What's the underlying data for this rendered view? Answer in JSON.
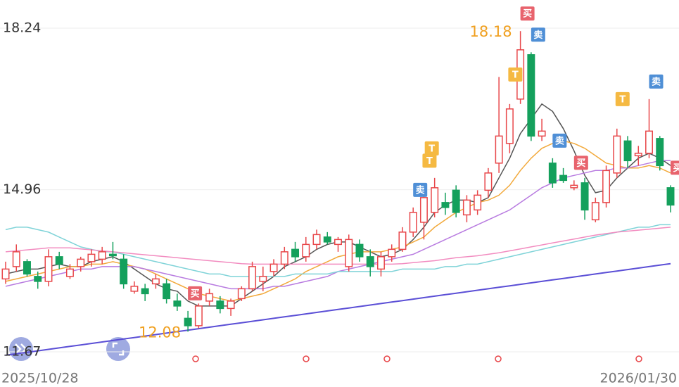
{
  "chart_data": {
    "type": "candlestick",
    "categories": [
      "2025/10/28",
      null,
      null,
      null,
      null,
      null,
      null,
      null,
      null,
      null,
      null,
      null,
      null,
      null,
      null,
      null,
      null,
      null,
      null,
      null,
      null,
      null,
      null,
      null,
      null,
      null,
      null,
      null,
      null,
      null,
      null,
      null,
      null,
      null,
      null,
      null,
      null,
      null,
      null,
      null,
      null,
      null,
      null,
      null,
      null,
      null,
      null,
      null,
      null,
      null,
      null,
      null,
      null,
      null,
      null,
      null,
      null,
      null,
      null,
      null,
      null,
      null,
      "2026/01/30"
    ],
    "open": [
      13.15,
      13.4,
      13.5,
      13.2,
      13.1,
      13.6,
      13.2,
      13.4,
      13.5,
      13.55,
      13.65,
      13.55,
      12.9,
      12.95,
      13.05,
      13.05,
      12.7,
      12.35,
      12.2,
      12.7,
      12.7,
      12.55,
      12.75,
      12.95,
      13.1,
      13.3,
      13.45,
      13.75,
      13.6,
      13.85,
      14.0,
      13.85,
      13.4,
      13.85,
      13.6,
      13.35,
      13.6,
      13.75,
      14.1,
      14.3,
      14.5,
      14.7,
      14.95,
      14.45,
      14.55,
      14.95,
      15.5,
      15.9,
      16.8,
      17.7,
      16.05,
      15.5,
      15.25,
      15.0,
      15.1,
      14.35,
      14.7,
      15.3,
      15.95,
      15.65,
      15.7,
      16.0,
      15.0
    ],
    "high": [
      13.5,
      13.85,
      13.55,
      13.3,
      13.75,
      13.7,
      13.45,
      13.6,
      13.75,
      13.8,
      13.9,
      13.65,
      13.1,
      13.05,
      13.25,
      13.15,
      12.85,
      12.5,
      12.65,
      12.95,
      12.8,
      12.75,
      13.0,
      13.5,
      13.4,
      13.55,
      13.8,
      13.9,
      14.0,
      14.15,
      14.1,
      14.0,
      14.05,
      13.95,
      13.75,
      13.7,
      13.85,
      14.2,
      14.6,
      14.95,
      15.2,
      14.9,
      15.05,
      14.85,
      14.95,
      15.4,
      17.25,
      16.7,
      18.18,
      17.75,
      16.4,
      15.6,
      15.4,
      15.15,
      15.2,
      14.8,
      15.45,
      16.2,
      16.05,
      15.85,
      16.8,
      16.05,
      15.05
    ],
    "low": [
      13.05,
      13.3,
      13.2,
      12.95,
      13.0,
      13.35,
      13.15,
      13.3,
      13.4,
      13.45,
      13.55,
      12.95,
      12.85,
      12.7,
      12.95,
      12.65,
      12.5,
      12.08,
      12.15,
      12.6,
      12.45,
      12.4,
      12.7,
      12.9,
      12.9,
      13.2,
      13.35,
      13.5,
      13.5,
      13.75,
      13.85,
      13.7,
      13.3,
      13.5,
      13.2,
      13.2,
      13.5,
      13.7,
      14.0,
      13.95,
      14.4,
      14.45,
      14.4,
      14.3,
      14.45,
      14.8,
      15.3,
      15.7,
      16.7,
      15.95,
      15.95,
      15.0,
      15.1,
      14.95,
      14.35,
      14.3,
      14.6,
      15.2,
      15.4,
      15.45,
      15.6,
      15.35,
      14.5
    ],
    "close": [
      13.35,
      13.7,
      13.25,
      13.1,
      13.6,
      13.45,
      13.35,
      13.55,
      13.65,
      13.7,
      13.62,
      13.05,
      13.0,
      12.85,
      13.15,
      12.75,
      12.6,
      12.2,
      12.6,
      12.85,
      12.55,
      12.7,
      12.95,
      13.4,
      13.2,
      13.45,
      13.7,
      13.6,
      13.85,
      14.05,
      13.9,
      13.95,
      13.95,
      13.6,
      13.4,
      13.6,
      13.75,
      14.1,
      14.5,
      14.8,
      15.0,
      14.6,
      14.5,
      14.75,
      14.85,
      15.3,
      16.05,
      16.6,
      17.8,
      16.05,
      16.15,
      15.1,
      15.15,
      15.05,
      14.55,
      14.7,
      15.35,
      16.05,
      15.55,
      15.7,
      16.15,
      15.45,
      14.65
    ],
    "up_color": "#e8474a",
    "down_color": "#14a05c",
    "series": [
      {
        "color": "#555555",
        "values": [
          13.25,
          13.3,
          13.35,
          13.35,
          13.4,
          13.45,
          13.4,
          13.4,
          13.5,
          13.55,
          13.6,
          13.5,
          13.35,
          13.2,
          13.05,
          12.95,
          12.9,
          12.7,
          12.6,
          12.6,
          12.6,
          12.6,
          12.75,
          12.9,
          13.05,
          13.2,
          13.4,
          13.5,
          13.6,
          13.75,
          13.85,
          13.9,
          13.9,
          13.8,
          13.7,
          13.6,
          13.65,
          13.75,
          13.95,
          14.2,
          14.5,
          14.65,
          14.75,
          14.75,
          14.7,
          14.8,
          15.2,
          15.6,
          16.1,
          16.4,
          16.7,
          16.55,
          16.2,
          15.75,
          15.25,
          14.9,
          14.95,
          15.2,
          15.4,
          15.6,
          15.7,
          15.6,
          15.45
        ]
      },
      {
        "color": "#f2a93b",
        "values": [
          13.1,
          13.15,
          13.2,
          13.25,
          13.3,
          13.35,
          13.4,
          13.4,
          13.45,
          13.45,
          13.5,
          13.45,
          13.4,
          13.35,
          13.25,
          13.15,
          13.05,
          12.95,
          12.85,
          12.8,
          12.75,
          12.7,
          12.75,
          12.8,
          12.85,
          12.95,
          13.05,
          13.15,
          13.3,
          13.4,
          13.5,
          13.6,
          13.65,
          13.7,
          13.7,
          13.7,
          13.75,
          13.8,
          13.9,
          14.0,
          14.2,
          14.35,
          14.5,
          14.6,
          14.7,
          14.75,
          14.85,
          15.05,
          15.35,
          15.6,
          15.8,
          15.9,
          15.95,
          15.9,
          15.8,
          15.65,
          15.5,
          15.45,
          15.4,
          15.4,
          15.45,
          15.4,
          15.3
        ]
      },
      {
        "color": "#b87be0",
        "values": [
          13.0,
          13.05,
          13.1,
          13.15,
          13.2,
          13.25,
          13.3,
          13.35,
          13.35,
          13.4,
          13.4,
          13.4,
          13.4,
          13.35,
          13.3,
          13.25,
          13.2,
          13.15,
          13.1,
          13.05,
          13.0,
          12.95,
          12.95,
          12.95,
          12.95,
          13.0,
          13.0,
          13.05,
          13.1,
          13.15,
          13.2,
          13.3,
          13.35,
          13.4,
          13.45,
          13.5,
          13.55,
          13.6,
          13.65,
          13.75,
          13.85,
          13.95,
          14.05,
          14.15,
          14.25,
          14.35,
          14.45,
          14.55,
          14.7,
          14.85,
          15.0,
          15.1,
          15.2,
          15.25,
          15.3,
          15.35,
          15.35,
          15.4,
          15.4,
          15.45,
          15.5,
          15.55,
          15.55
        ]
      },
      {
        "color": "#7fd3d8",
        "values": [
          14.15,
          14.2,
          14.2,
          14.15,
          14.1,
          14.0,
          13.9,
          13.8,
          13.75,
          13.7,
          13.7,
          13.65,
          13.6,
          13.55,
          13.5,
          13.45,
          13.4,
          13.35,
          13.3,
          13.25,
          13.25,
          13.2,
          13.2,
          13.2,
          13.2,
          13.2,
          13.2,
          13.25,
          13.25,
          13.25,
          13.25,
          13.3,
          13.3,
          13.3,
          13.3,
          13.3,
          13.3,
          13.35,
          13.35,
          13.35,
          13.35,
          13.4,
          13.4,
          13.45,
          13.45,
          13.5,
          13.55,
          13.6,
          13.65,
          13.7,
          13.75,
          13.8,
          13.85,
          13.9,
          13.95,
          14.0,
          14.05,
          14.1,
          14.15,
          14.2,
          14.2,
          14.25,
          14.25
        ]
      },
      {
        "color": "#f28cc0",
        "values": [
          13.7,
          13.72,
          13.74,
          13.76,
          13.78,
          13.78,
          13.78,
          13.76,
          13.74,
          13.72,
          13.7,
          13.68,
          13.66,
          13.64,
          13.62,
          13.6,
          13.58,
          13.56,
          13.54,
          13.52,
          13.5,
          13.48,
          13.46,
          13.45,
          13.45,
          13.45,
          13.45,
          13.45,
          13.45,
          13.45,
          13.45,
          13.45,
          13.45,
          13.45,
          13.45,
          13.45,
          13.45,
          13.46,
          13.48,
          13.5,
          13.52,
          13.55,
          13.58,
          13.6,
          13.62,
          13.65,
          13.68,
          13.72,
          13.76,
          13.8,
          13.84,
          13.88,
          13.92,
          13.96,
          14.0,
          14.04,
          14.07,
          14.1,
          14.12,
          14.14,
          14.16,
          14.18,
          14.2
        ]
      },
      {
        "color": "#5b4fd6",
        "values": [
          11.6,
          11.63,
          11.66,
          11.69,
          11.72,
          11.75,
          11.78,
          11.81,
          11.84,
          11.87,
          11.9,
          11.93,
          11.96,
          11.99,
          12.02,
          12.05,
          12.08,
          12.11,
          12.14,
          12.17,
          12.2,
          12.23,
          12.26,
          12.29,
          12.32,
          12.35,
          12.38,
          12.41,
          12.44,
          12.47,
          12.5,
          12.53,
          12.56,
          12.59,
          12.62,
          12.65,
          12.68,
          12.71,
          12.74,
          12.77,
          12.8,
          12.83,
          12.86,
          12.89,
          12.92,
          12.95,
          12.98,
          13.01,
          13.04,
          13.07,
          13.1,
          13.13,
          13.16,
          13.19,
          13.22,
          13.25,
          13.28,
          13.31,
          13.34,
          13.37,
          13.4,
          13.43,
          13.46
        ]
      }
    ],
    "t_markers": [
      null,
      null,
      null,
      null,
      null,
      null,
      null,
      null,
      null,
      null,
      null,
      null,
      null,
      null,
      null,
      null,
      null,
      null,
      null,
      null,
      null,
      null,
      null,
      null,
      null,
      null,
      null,
      null,
      null,
      null,
      null,
      null,
      null,
      null,
      null,
      null,
      null,
      null,
      null,
      "T",
      "T",
      null,
      null,
      null,
      null,
      null,
      null,
      "T",
      null,
      null,
      null,
      null,
      null,
      null,
      null,
      null,
      null,
      "T",
      null,
      null,
      null,
      null,
      null
    ],
    "bs_markers": [
      null,
      null,
      null,
      null,
      null,
      null,
      null,
      null,
      null,
      null,
      null,
      null,
      null,
      null,
      null,
      null,
      null,
      "买",
      null,
      null,
      null,
      null,
      null,
      null,
      null,
      null,
      null,
      null,
      null,
      null,
      null,
      null,
      null,
      null,
      null,
      null,
      null,
      null,
      "卖",
      null,
      null,
      null,
      null,
      null,
      null,
      null,
      null,
      null,
      "买",
      "卖",
      null,
      "卖",
      null,
      "买",
      null,
      null,
      null,
      null,
      null,
      null,
      "卖",
      null,
      "买"
    ],
    "buy_color": "#e8636d",
    "sell_color": "#4f8fd6",
    "t_color": "#f5b942",
    "high_label": 18.18,
    "low_label": 12.08,
    "ylim": [
      11.67,
      18.24
    ],
    "yticks": [
      11.67,
      14.96,
      18.24
    ],
    "grid": true
  }
}
